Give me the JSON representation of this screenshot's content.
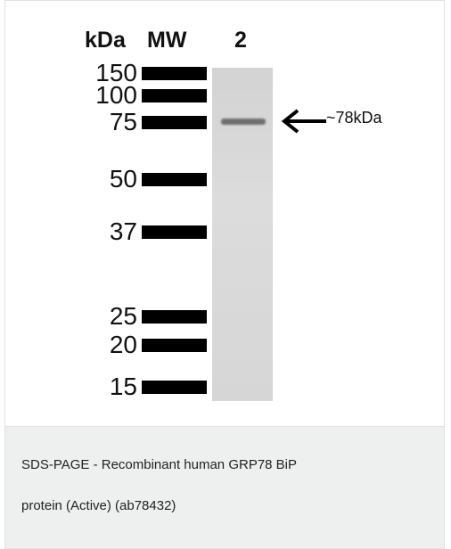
{
  "figure": {
    "header": {
      "unit": "kDa",
      "marker_lane": "MW",
      "sample_lane": "2"
    },
    "markers": [
      "150",
      "100",
      "75",
      "50",
      "37",
      "25",
      "20",
      "15"
    ],
    "annotation": "~78kDa"
  },
  "caption": {
    "lines": [
      "SDS-PAGE - Recombinant human GRP78 BiP",
      "protein (Active) (ab78432)"
    ]
  }
}
